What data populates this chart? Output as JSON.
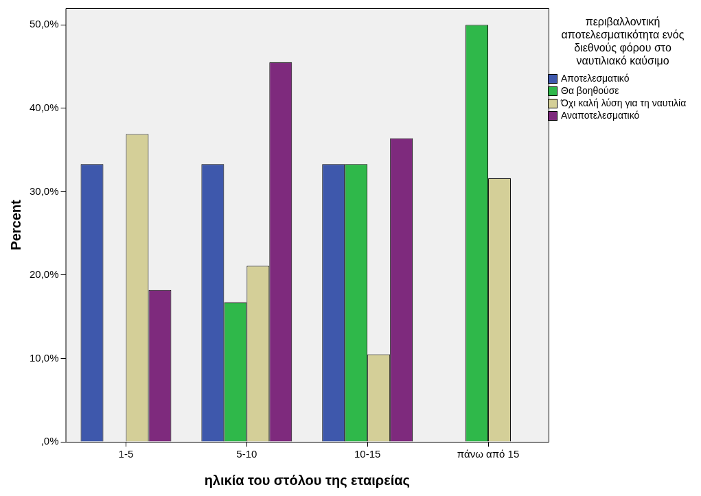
{
  "chart_data": {
    "type": "bar",
    "xlabel": "ηλικία του στόλου της εταιρείας",
    "ylabel": "Percent",
    "legend_title": "περιβαλλοντική αποτελεσματικότητα ενός διεθνούς φόρου στο ναυτιλιακό καύσιμο",
    "categories": [
      "1-5",
      "5-10",
      "10-15",
      "πάνω από 15"
    ],
    "series": [
      {
        "name": "Αποτελεσματικό",
        "color": "#3e58ac",
        "values": [
          33.3,
          33.3,
          33.3,
          0
        ]
      },
      {
        "name": "Θα βοηθούσε",
        "color": "#2fb84a",
        "values": [
          0,
          16.7,
          33.3,
          50.0
        ]
      },
      {
        "name": "Όχι καλή λύση για τη ναυτιλία",
        "color": "#d4cf98",
        "values": [
          36.9,
          21.1,
          10.5,
          31.6
        ]
      },
      {
        "name": "Αναποτελεσματικό",
        "color": "#7e2a7d",
        "values": [
          18.2,
          45.5,
          36.4,
          0
        ]
      }
    ],
    "ylim": [
      0,
      52
    ],
    "yticks": [
      {
        "value": 0,
        "label": ",0%"
      },
      {
        "value": 10,
        "label": "10,0%"
      },
      {
        "value": 20,
        "label": "20,0%"
      },
      {
        "value": 30,
        "label": "30,0%"
      },
      {
        "value": 40,
        "label": "40,0%"
      },
      {
        "value": 50,
        "label": "50,0%"
      }
    ],
    "grid": false,
    "legend": "top right"
  }
}
